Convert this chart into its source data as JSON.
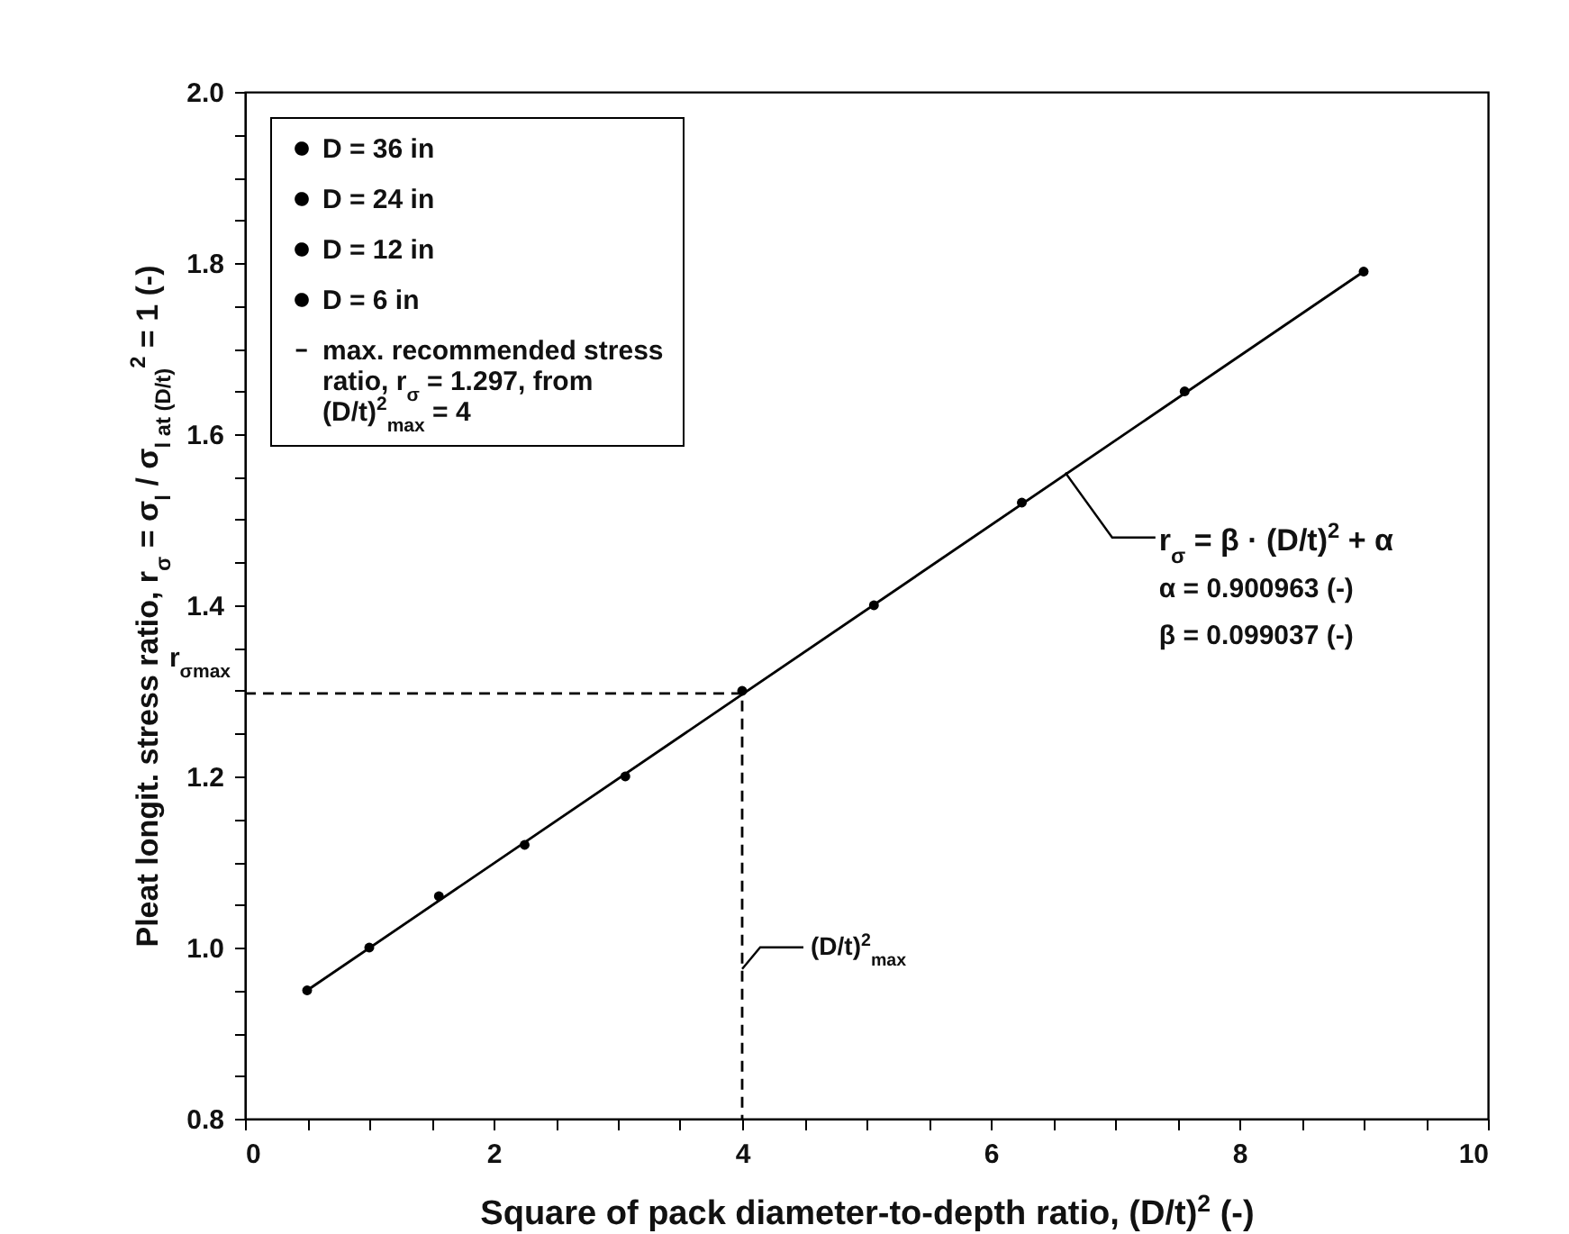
{
  "chart_data": {
    "type": "scatter",
    "xlabel": "Square of pack diameter-to-depth ratio, (D/t)$^{2}$ (-)",
    "ylabel": "Pleat longit. stress ratio, r$_{σ}$ = σ$_{l}$ / σ$_{l at (D/t)}$$^{2}$ = 1 (-)",
    "xlim": [
      0,
      10
    ],
    "ylim": [
      0.8,
      2.0
    ],
    "xticks": [
      0,
      {
        "value": 0.5,
        "label": null
      },
      {
        "value": 1,
        "label": null
      },
      {
        "value": 1.5,
        "label": null
      },
      2,
      {
        "value": 2.5,
        "label": null
      },
      {
        "value": 3,
        "label": null
      },
      {
        "value": 3.5,
        "label": null
      },
      4,
      {
        "value": 4.5,
        "label": null
      },
      {
        "value": 5,
        "label": null
      },
      {
        "value": 5.5,
        "label": null
      },
      6,
      {
        "value": 6.5,
        "label": null
      },
      {
        "value": 7,
        "label": null
      },
      {
        "value": 7.5,
        "label": null
      },
      8,
      {
        "value": 8.5,
        "label": null
      },
      {
        "value": 9,
        "label": null
      },
      {
        "value": 9.5,
        "label": null
      },
      10
    ],
    "yticks": [
      0.8,
      {
        "value": 0.85,
        "label": null
      },
      {
        "value": 0.9,
        "label": null
      },
      {
        "value": 0.95,
        "label": null
      },
      {
        "value": 1.0,
        "label": "1.0"
      },
      {
        "value": 1.05,
        "label": null
      },
      {
        "value": 1.1,
        "label": null
      },
      {
        "value": 1.15,
        "label": null
      },
      1.2,
      {
        "value": 1.25,
        "label": null
      },
      {
        "value": 1.3,
        "label": null
      },
      {
        "value": 1.35,
        "label": null
      },
      1.4,
      {
        "value": 1.45,
        "label": null
      },
      {
        "value": 1.5,
        "label": null
      },
      {
        "value": 1.55,
        "label": null
      },
      1.6,
      {
        "value": 1.65,
        "label": null
      },
      {
        "value": 1.7,
        "label": null
      },
      {
        "value": 1.75,
        "label": null
      },
      1.8,
      {
        "value": 1.85,
        "label": null
      },
      {
        "value": 1.9,
        "label": null
      },
      {
        "value": 1.95,
        "label": null
      },
      {
        "value": 2.0,
        "label": "2.0"
      }
    ],
    "grid": false,
    "legend": "top left",
    "marker": "circle",
    "series": [
      {
        "type": "line",
        "color": "#000000",
        "line_style": "solid",
        "marker": "none",
        "x": [
          0.5,
          9
        ],
        "values": [
          0.95,
          1.79
        ]
      },
      {
        "name": "D = 36 in",
        "color": "#000000",
        "x": [
          6.25,
          7.56,
          9
        ],
        "values": [
          1.52,
          1.65,
          1.79
        ]
      },
      {
        "name": "D = 24 in",
        "color": "#000000",
        "x": [
          4,
          5.06
        ],
        "values": [
          1.3,
          1.4
        ]
      },
      {
        "name": "D = 12 in",
        "color": "#000000",
        "x": [
          2.25,
          3.06
        ],
        "values": [
          1.12,
          1.2
        ]
      },
      {
        "name": "D =   6 in",
        "color": "#000000",
        "x": [
          0.5,
          1,
          1.56
        ],
        "values": [
          0.95,
          1.0,
          1.06
        ]
      },
      {
        "name": "max. recommended stress ratio, r$_{σ}$ = 1.297, from (D/t)$^{2}$$_{max}$ = 4",
        "type": "line",
        "color": "#000000",
        "line_style": "dashed",
        "marker": "none",
        "x": [
          0,
          4,
          4
        ],
        "values": [
          1.297,
          1.297,
          0.8
        ]
      }
    ],
    "annotations": [
      {
        "text": "r$_{σ}$ = β · (D/t)$^{2}$ + α",
        "x": 6.6,
        "y": 1.555
      },
      "α = 0.900963 (-)",
      "β = 0.099037 (-)",
      {
        "text": "r$_{σ}$$_{max}$",
        "x": 0,
        "y": 1.297
      },
      {
        "text": "(D/t)$^{2}$$_{max}$",
        "x": 4,
        "y": 0.975
      }
    ]
  }
}
